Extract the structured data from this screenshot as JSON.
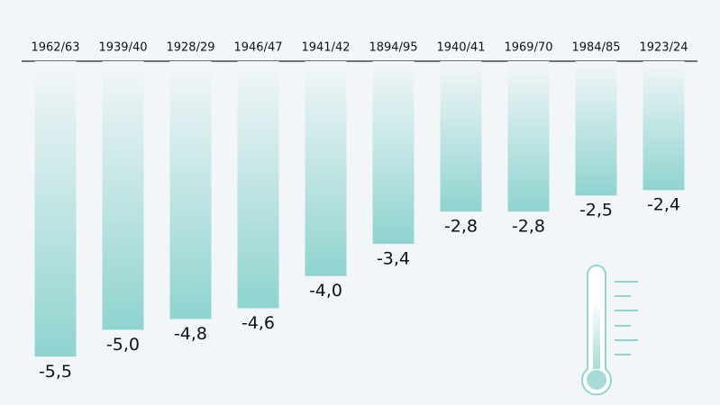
{
  "chart_data": {
    "type": "bar",
    "categories": [
      "1962/63",
      "1939/40",
      "1928/29",
      "1946/47",
      "1941/42",
      "1894/95",
      "1940/41",
      "1969/70",
      "1984/85",
      "1923/24"
    ],
    "values": [
      -5.5,
      -5.0,
      -4.8,
      -4.6,
      -4.0,
      -3.4,
      -2.8,
      -2.8,
      -2.5,
      -2.4
    ],
    "value_labels": [
      "-5,5",
      "-5,0",
      "-4,8",
      "-4,6",
      "-4,0",
      "-3,4",
      "-2,8",
      "-2,8",
      "-2,5",
      "-2,4"
    ],
    "color": "#8fd4cf",
    "ylim": [
      -6.3,
      0
    ]
  }
}
